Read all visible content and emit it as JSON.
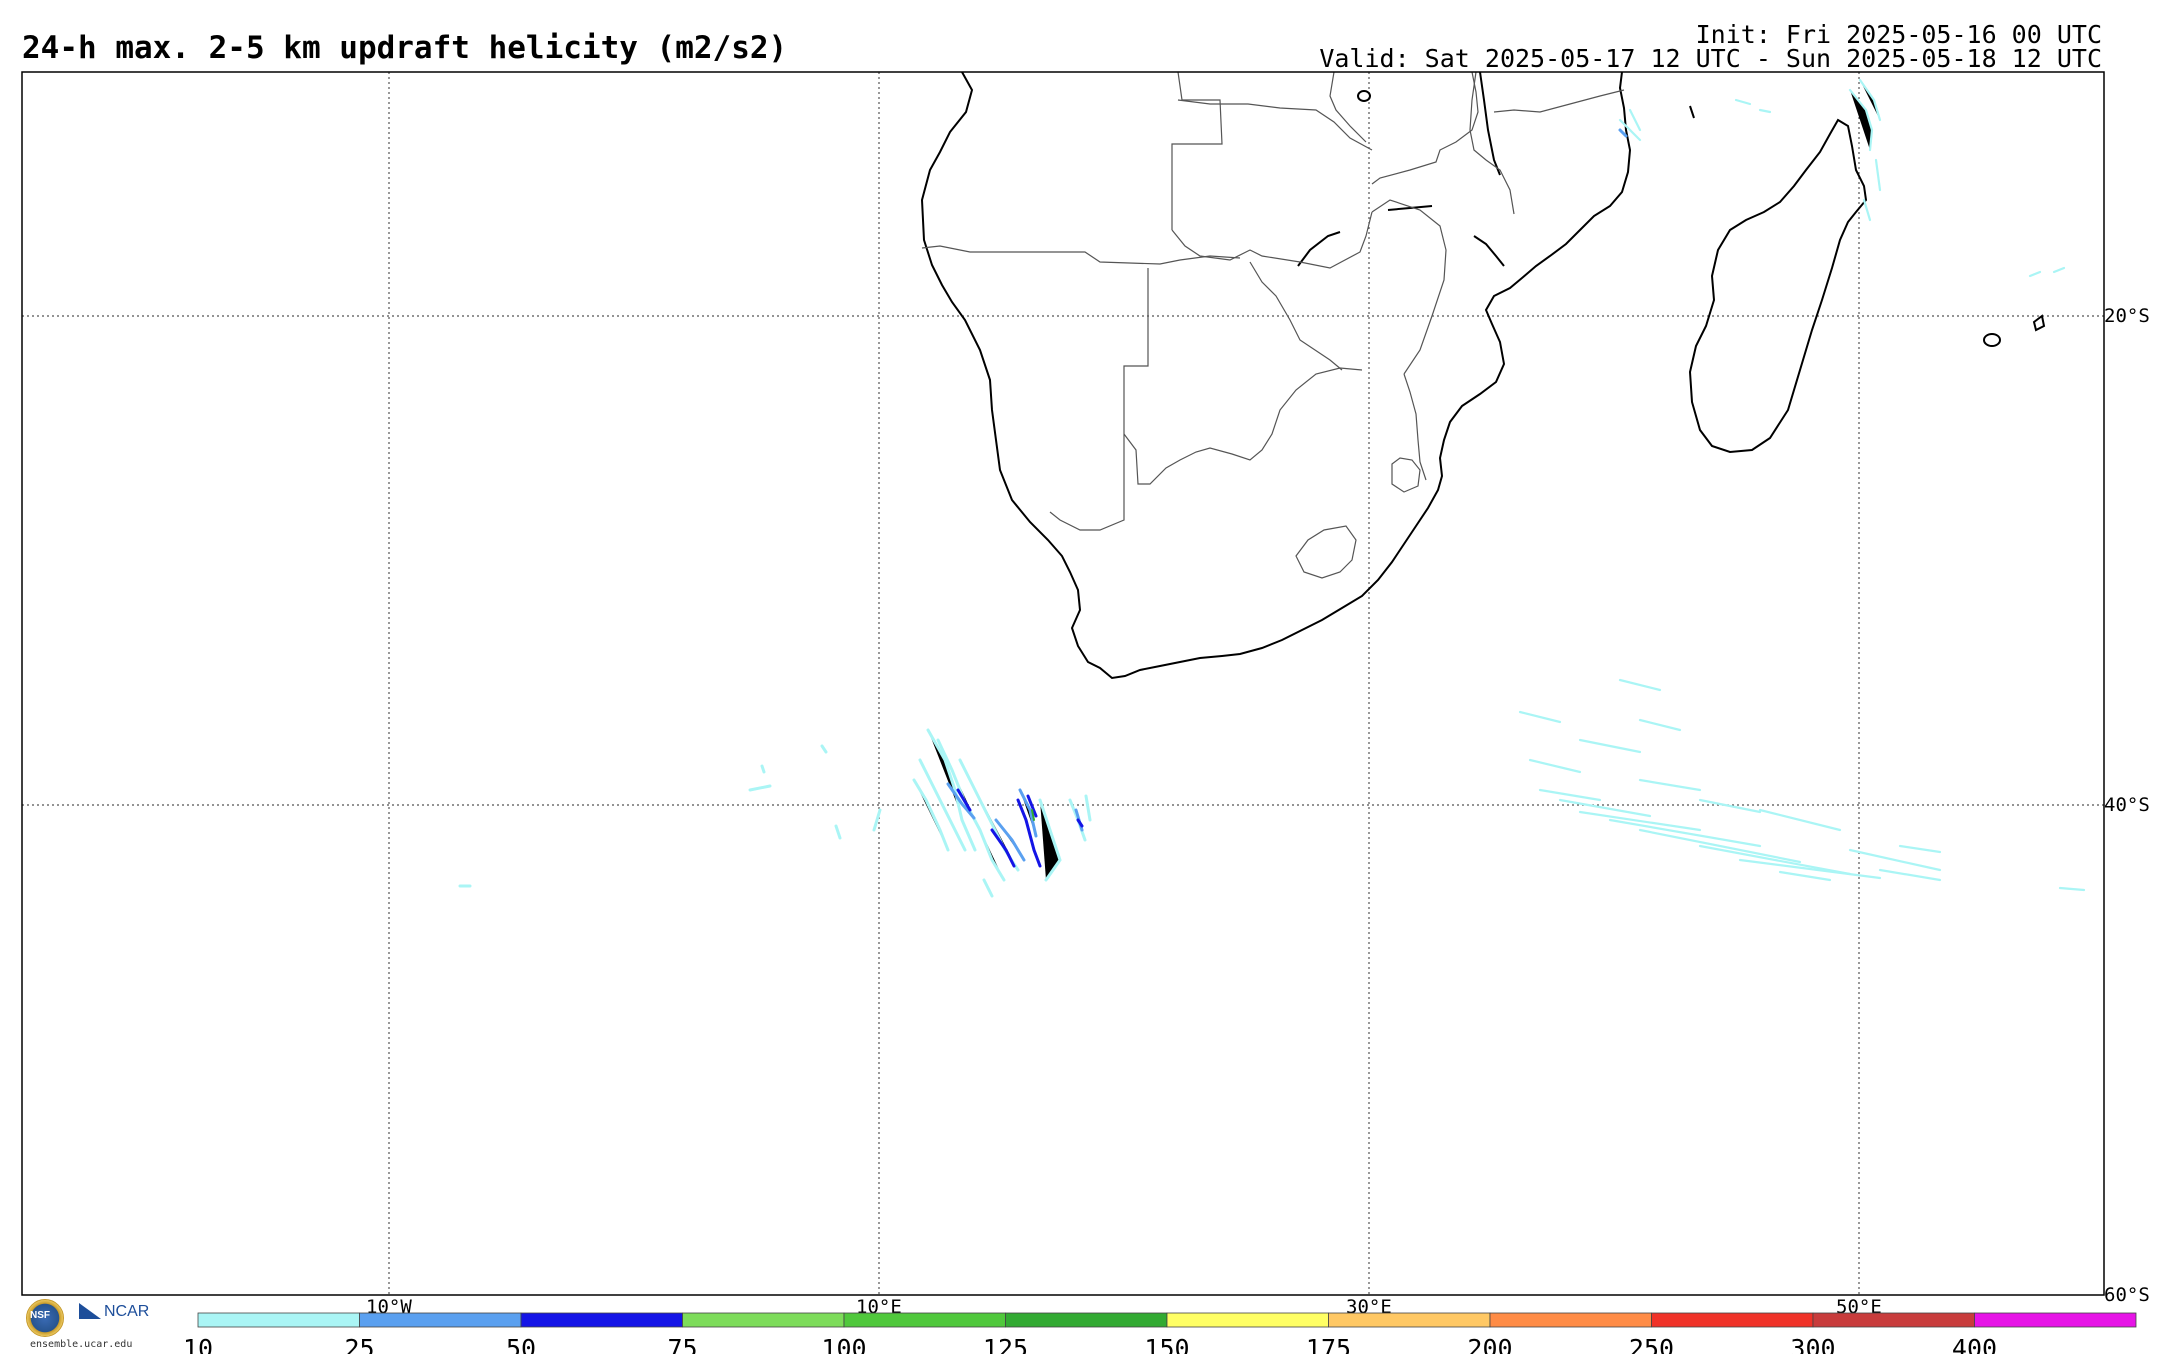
{
  "title": "24-h max. 2-5 km updraft helicity (m2/s2)",
  "init_text": "Init: Fri 2025-05-16 00 UTC",
  "valid_text": "Valid: Sat 2025-05-17 12 UTC - Sun 2025-05-18 12 UTC",
  "map": {
    "lon_labels": [
      "10°W",
      "10°E",
      "30°E",
      "50°E"
    ],
    "lat_labels": [
      "20°S",
      "40°S",
      "60°S"
    ],
    "frame_color": "#000000",
    "grid_color": "#555555"
  },
  "colorbar": {
    "ticks": [
      "10",
      "25",
      "50",
      "75",
      "100",
      "125",
      "150",
      "175",
      "200",
      "250",
      "300",
      "400"
    ],
    "colors": [
      "#aaf5f5",
      "#5aa0f0",
      "#1414e6",
      "#7ddc5a",
      "#50c83c",
      "#32aa32",
      "#ffff64",
      "#ffc864",
      "#ff8c46",
      "#f03228",
      "#c83c3c",
      "#e614e6"
    ]
  },
  "logo": {
    "org": "NCAR",
    "seal": "NSF",
    "site": "ensemble.ucar.edu"
  }
}
